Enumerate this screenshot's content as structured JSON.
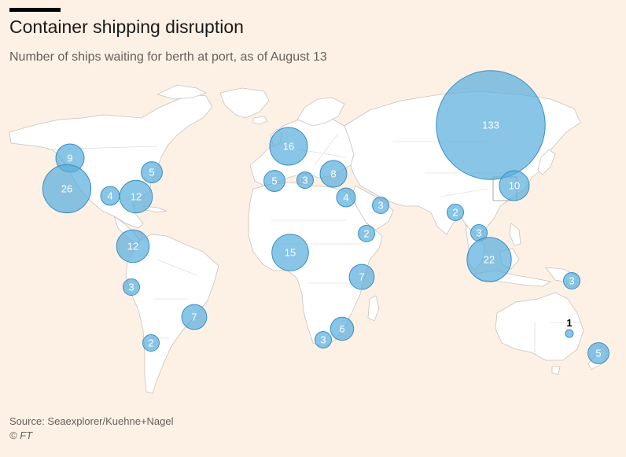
{
  "header": {
    "title": "Container shipping disruption",
    "subtitle": "Number of ships waiting for berth at port, as of August 13"
  },
  "footer": {
    "source": "Source: Seaexplorer/Kuehne+Nagel",
    "copyright": "© FT"
  },
  "colors": {
    "background": "#fdf1e5",
    "land": "#ffffff",
    "bubble": "#5aaedc"
  },
  "map_data": {
    "type": "proportional-symbol map",
    "ports": [
      {
        "region": "US Pacific Northwest",
        "value": 9
      },
      {
        "region": "US West Coast (California)",
        "value": 26
      },
      {
        "region": "US Gulf",
        "value": 4
      },
      {
        "region": "US Southeast",
        "value": 12
      },
      {
        "region": "US Northeast",
        "value": 5
      },
      {
        "region": "Caribbean / Panama",
        "value": 12
      },
      {
        "region": "Peru",
        "value": 3
      },
      {
        "region": "Chile",
        "value": 2
      },
      {
        "region": "Brazil",
        "value": 7
      },
      {
        "region": "Northern Europe",
        "value": 16
      },
      {
        "region": "Iberia",
        "value": 5
      },
      {
        "region": "Western Mediterranean",
        "value": 3
      },
      {
        "region": "Eastern Mediterranean",
        "value": 8
      },
      {
        "region": "Egypt / Red Sea",
        "value": 4
      },
      {
        "region": "Persian Gulf",
        "value": 3
      },
      {
        "region": "West Africa",
        "value": 15
      },
      {
        "region": "Horn of Africa",
        "value": 2
      },
      {
        "region": "East Africa",
        "value": 7
      },
      {
        "region": "South Africa (east)",
        "value": 6
      },
      {
        "region": "South Africa (west)",
        "value": 3
      },
      {
        "region": "India",
        "value": 2
      },
      {
        "region": "Vietnam / Thailand",
        "value": 3
      },
      {
        "region": "Southeast Asia",
        "value": 22
      },
      {
        "region": "China",
        "value": 133
      },
      {
        "region": "South Korea",
        "value": 10
      },
      {
        "region": "Papua New Guinea",
        "value": 3
      },
      {
        "region": "Eastern Australia",
        "value": 1
      },
      {
        "region": "New Zealand",
        "value": 5
      }
    ]
  }
}
